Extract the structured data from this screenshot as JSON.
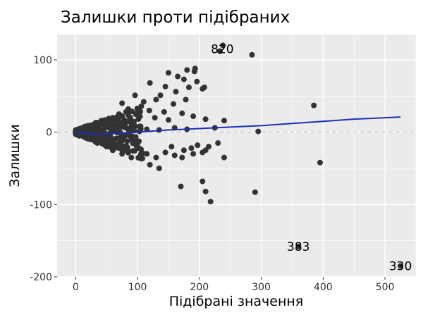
{
  "chart_data": {
    "type": "scatter",
    "title": "Залишки проти підібраних",
    "xlabel": "Підібрані значення",
    "ylabel": "Залишки",
    "xlim": [
      -30,
      550
    ],
    "ylim": [
      -200,
      135
    ],
    "x_ticks": [
      0,
      100,
      200,
      300,
      400,
      500
    ],
    "y_ticks": [
      100,
      0,
      -100,
      -200
    ],
    "x_tick_labels": [
      "0",
      "100",
      "200",
      "300",
      "400",
      "500"
    ],
    "y_tick_labels": [
      "100",
      "0",
      "-100",
      "-200"
    ],
    "grid": true,
    "panel_background": "#ebebeb",
    "point_color": "#333333",
    "smooth_color": "#1f2fb5",
    "zero_line_color": "#b5b5b5",
    "labeled_points": [
      {
        "label": "820",
        "x": 237,
        "y": 115
      },
      {
        "label": "383",
        "x": 360,
        "y": -158
      },
      {
        "label": "330",
        "x": 525,
        "y": -185
      }
    ],
    "points": [
      [
        238,
        120
      ],
      [
        233,
        112
      ],
      [
        285,
        107
      ],
      [
        180,
        86
      ],
      [
        165,
        77
      ],
      [
        193,
        88
      ],
      [
        192,
        84
      ],
      [
        150,
        82
      ],
      [
        175,
        73
      ],
      [
        196,
        70
      ],
      [
        208,
        62
      ],
      [
        120,
        68
      ],
      [
        145,
        63
      ],
      [
        183,
        62
      ],
      [
        205,
        60
      ],
      [
        162,
        56
      ],
      [
        137,
        51
      ],
      [
        96,
        51
      ],
      [
        130,
        45
      ],
      [
        110,
        42
      ],
      [
        178,
        45
      ],
      [
        158,
        39
      ],
      [
        385,
        37
      ],
      [
        75,
        40
      ],
      [
        85,
        32
      ],
      [
        100,
        30
      ],
      [
        119,
        30
      ],
      [
        143,
        28
      ],
      [
        172,
        26
      ],
      [
        190,
        22
      ],
      [
        210,
        18
      ],
      [
        240,
        16
      ],
      [
        128,
        20
      ],
      [
        150,
        17
      ],
      [
        70,
        25
      ],
      [
        60,
        20
      ],
      [
        55,
        14
      ],
      [
        80,
        12
      ],
      [
        92,
        10
      ],
      [
        105,
        8
      ],
      [
        115,
        4
      ],
      [
        135,
        3
      ],
      [
        160,
        6
      ],
      [
        180,
        4
      ],
      [
        225,
        6
      ],
      [
        295,
        1
      ],
      [
        45,
        10
      ],
      [
        30,
        8
      ],
      [
        20,
        5
      ],
      [
        10,
        3
      ],
      [
        40,
        -10
      ],
      [
        55,
        -15
      ],
      [
        70,
        -20
      ],
      [
        85,
        -25
      ],
      [
        100,
        -20
      ],
      [
        115,
        -30
      ],
      [
        130,
        -35
      ],
      [
        145,
        -28
      ],
      [
        155,
        -20
      ],
      [
        175,
        -25
      ],
      [
        190,
        -30
      ],
      [
        205,
        -28
      ],
      [
        215,
        -20
      ],
      [
        240,
        -35
      ],
      [
        120,
        -45
      ],
      [
        135,
        -50
      ],
      [
        160,
        -32
      ],
      [
        172,
        -35
      ],
      [
        187,
        -22
      ],
      [
        197,
        -18
      ],
      [
        230,
        -15
      ],
      [
        210,
        -25
      ],
      [
        395,
        -42
      ],
      [
        90,
        -35
      ],
      [
        75,
        -30
      ],
      [
        60,
        -25
      ],
      [
        50,
        -20
      ],
      [
        35,
        -15
      ],
      [
        25,
        -10
      ],
      [
        170,
        -75
      ],
      [
        205,
        -68
      ],
      [
        210,
        -82
      ],
      [
        218,
        -96
      ],
      [
        290,
        -83
      ],
      [
        360,
        -158
      ],
      [
        525,
        -185
      ]
    ],
    "smooth_line": [
      [
        0,
        0
      ],
      [
        30,
        -3
      ],
      [
        60,
        -2
      ],
      [
        100,
        0
      ],
      [
        150,
        3
      ],
      [
        200,
        5
      ],
      [
        250,
        7
      ],
      [
        300,
        9
      ],
      [
        350,
        12
      ],
      [
        400,
        15
      ],
      [
        450,
        18
      ],
      [
        525,
        21
      ]
    ]
  }
}
